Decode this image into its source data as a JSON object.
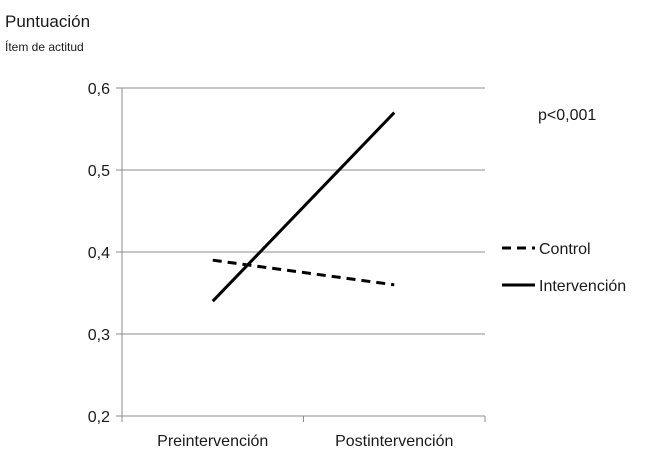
{
  "chart_data": {
    "type": "line",
    "title": "Puntuación",
    "subtitle": "Ítem de actitud",
    "xlabel": "",
    "ylabel": "",
    "categories": [
      "Preintervención",
      "Postintervención"
    ],
    "ylim": [
      0.2,
      0.6
    ],
    "yticks": [
      0.2,
      0.3,
      0.4,
      0.5,
      0.6
    ],
    "ytick_labels": [
      "0,2",
      "0,3",
      "0,4",
      "0,5",
      "0,6"
    ],
    "grid": true,
    "legend_position": "right",
    "series": [
      {
        "name": "Control",
        "style": "dashed",
        "color": "#000000",
        "values": [
          0.39,
          0.36
        ]
      },
      {
        "name": "Intervención",
        "style": "solid",
        "color": "#000000",
        "values": [
          0.34,
          0.57
        ]
      }
    ],
    "annotation": "p<0,001"
  }
}
